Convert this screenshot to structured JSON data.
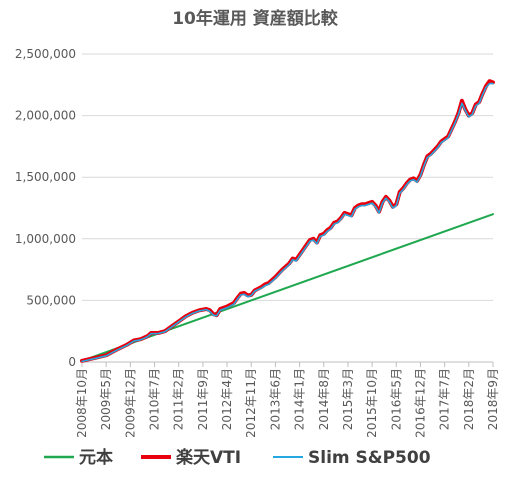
{
  "chart_data": {
    "type": "line",
    "title": "10年運用  資産額比較",
    "xlabel": "",
    "ylabel": "",
    "ylim": [
      0,
      2500000
    ],
    "y_ticks": [
      "0",
      "500,000",
      "1,000,000",
      "1,500,000",
      "2,000,000",
      "2,500,000"
    ],
    "x_tick_labels": [
      "2008年10月",
      "2009年5月",
      "2009年12月",
      "2010年7月",
      "2011年2月",
      "2011年9月",
      "2012年4月",
      "2012年11月",
      "2013年6月",
      "2014年1月",
      "2014年8月",
      "2015年3月",
      "2015年10月",
      "2016年5月",
      "2016年12月",
      "2017年7月",
      "2018年2月",
      "2018年9月"
    ],
    "grid": "horizontal",
    "legend": "bottom",
    "series": [
      {
        "name": "元本",
        "color": "#1fa84f",
        "points": [
          [
            0,
            10000
          ],
          [
            119,
            1200000
          ]
        ]
      },
      {
        "name": "楽天VTI",
        "color": "#e8000d",
        "points": [
          [
            0,
            10000
          ],
          [
            4,
            35000
          ],
          [
            7,
            55000
          ],
          [
            10,
            100000
          ],
          [
            13,
            140000
          ],
          [
            15,
            175000
          ],
          [
            17,
            185000
          ],
          [
            19,
            210000
          ],
          [
            20,
            235000
          ],
          [
            22,
            235000
          ],
          [
            24,
            250000
          ],
          [
            26,
            290000
          ],
          [
            28,
            330000
          ],
          [
            30,
            370000
          ],
          [
            32,
            400000
          ],
          [
            34,
            420000
          ],
          [
            36,
            430000
          ],
          [
            37,
            420000
          ],
          [
            38,
            390000
          ],
          [
            39,
            380000
          ],
          [
            40,
            430000
          ],
          [
            42,
            450000
          ],
          [
            44,
            480000
          ],
          [
            45,
            520000
          ],
          [
            46,
            555000
          ],
          [
            47,
            560000
          ],
          [
            48,
            540000
          ],
          [
            49,
            545000
          ],
          [
            50,
            580000
          ],
          [
            52,
            610000
          ],
          [
            53,
            630000
          ],
          [
            54,
            640000
          ],
          [
            56,
            690000
          ],
          [
            58,
            750000
          ],
          [
            60,
            800000
          ],
          [
            61,
            840000
          ],
          [
            62,
            830000
          ],
          [
            63,
            870000
          ],
          [
            64,
            910000
          ],
          [
            65,
            950000
          ],
          [
            66,
            990000
          ],
          [
            67,
            1000000
          ],
          [
            68,
            970000
          ],
          [
            69,
            1030000
          ],
          [
            70,
            1040000
          ],
          [
            71,
            1070000
          ],
          [
            72,
            1090000
          ],
          [
            73,
            1130000
          ],
          [
            74,
            1140000
          ],
          [
            75,
            1170000
          ],
          [
            76,
            1210000
          ],
          [
            77,
            1200000
          ],
          [
            78,
            1190000
          ],
          [
            79,
            1250000
          ],
          [
            80,
            1270000
          ],
          [
            81,
            1280000
          ],
          [
            82,
            1280000
          ],
          [
            83,
            1290000
          ],
          [
            84,
            1300000
          ],
          [
            85,
            1270000
          ],
          [
            86,
            1220000
          ],
          [
            87,
            1300000
          ],
          [
            88,
            1340000
          ],
          [
            89,
            1310000
          ],
          [
            90,
            1260000
          ],
          [
            91,
            1280000
          ],
          [
            92,
            1380000
          ],
          [
            93,
            1410000
          ],
          [
            94,
            1450000
          ],
          [
            95,
            1480000
          ],
          [
            96,
            1490000
          ],
          [
            97,
            1470000
          ],
          [
            98,
            1520000
          ],
          [
            99,
            1600000
          ],
          [
            100,
            1670000
          ],
          [
            101,
            1690000
          ],
          [
            102,
            1720000
          ],
          [
            103,
            1750000
          ],
          [
            104,
            1790000
          ],
          [
            105,
            1810000
          ],
          [
            106,
            1830000
          ],
          [
            107,
            1890000
          ],
          [
            108,
            1950000
          ],
          [
            109,
            2020000
          ],
          [
            110,
            2120000
          ],
          [
            111,
            2050000
          ],
          [
            112,
            2000000
          ],
          [
            113,
            2020000
          ],
          [
            114,
            2090000
          ],
          [
            115,
            2110000
          ],
          [
            116,
            2180000
          ],
          [
            117,
            2240000
          ],
          [
            118,
            2280000
          ],
          [
            119,
            2270000
          ]
        ]
      },
      {
        "name": "Slim S&P500",
        "color": "#25a7e0",
        "points": [
          [
            0,
            5000
          ],
          [
            4,
            30000
          ],
          [
            7,
            50000
          ],
          [
            10,
            95000
          ],
          [
            13,
            135000
          ],
          [
            15,
            170000
          ],
          [
            17,
            180000
          ],
          [
            19,
            205000
          ],
          [
            20,
            230000
          ],
          [
            22,
            230000
          ],
          [
            24,
            245000
          ],
          [
            26,
            285000
          ],
          [
            28,
            325000
          ],
          [
            30,
            365000
          ],
          [
            32,
            395000
          ],
          [
            34,
            415000
          ],
          [
            36,
            425000
          ],
          [
            37,
            410000
          ],
          [
            38,
            380000
          ],
          [
            39,
            375000
          ],
          [
            40,
            420000
          ],
          [
            42,
            440000
          ],
          [
            44,
            470000
          ],
          [
            45,
            510000
          ],
          [
            46,
            545000
          ],
          [
            47,
            550000
          ],
          [
            48,
            530000
          ],
          [
            49,
            540000
          ],
          [
            50,
            575000
          ],
          [
            52,
            600000
          ],
          [
            53,
            620000
          ],
          [
            54,
            630000
          ],
          [
            56,
            680000
          ],
          [
            58,
            740000
          ],
          [
            60,
            790000
          ],
          [
            61,
            830000
          ],
          [
            62,
            820000
          ],
          [
            63,
            860000
          ],
          [
            64,
            900000
          ],
          [
            65,
            940000
          ],
          [
            66,
            980000
          ],
          [
            67,
            990000
          ],
          [
            68,
            960000
          ],
          [
            69,
            1020000
          ],
          [
            70,
            1030000
          ],
          [
            71,
            1060000
          ],
          [
            72,
            1080000
          ],
          [
            73,
            1120000
          ],
          [
            74,
            1130000
          ],
          [
            75,
            1160000
          ],
          [
            76,
            1200000
          ],
          [
            77,
            1190000
          ],
          [
            78,
            1180000
          ],
          [
            79,
            1240000
          ],
          [
            80,
            1260000
          ],
          [
            81,
            1270000
          ],
          [
            82,
            1270000
          ],
          [
            83,
            1280000
          ],
          [
            84,
            1290000
          ],
          [
            85,
            1260000
          ],
          [
            86,
            1210000
          ],
          [
            87,
            1290000
          ],
          [
            88,
            1330000
          ],
          [
            89,
            1300000
          ],
          [
            90,
            1250000
          ],
          [
            91,
            1270000
          ],
          [
            92,
            1370000
          ],
          [
            93,
            1400000
          ],
          [
            94,
            1440000
          ],
          [
            95,
            1470000
          ],
          [
            96,
            1480000
          ],
          [
            97,
            1460000
          ],
          [
            98,
            1510000
          ],
          [
            99,
            1590000
          ],
          [
            100,
            1660000
          ],
          [
            101,
            1680000
          ],
          [
            102,
            1710000
          ],
          [
            103,
            1740000
          ],
          [
            104,
            1780000
          ],
          [
            105,
            1800000
          ],
          [
            106,
            1820000
          ],
          [
            107,
            1880000
          ],
          [
            108,
            1940000
          ],
          [
            109,
            2010000
          ],
          [
            110,
            2100000
          ],
          [
            111,
            2040000
          ],
          [
            112,
            1990000
          ],
          [
            113,
            2010000
          ],
          [
            114,
            2080000
          ],
          [
            115,
            2100000
          ],
          [
            116,
            2170000
          ],
          [
            117,
            2230000
          ],
          [
            118,
            2260000
          ],
          [
            119,
            2260000
          ]
        ]
      }
    ]
  }
}
